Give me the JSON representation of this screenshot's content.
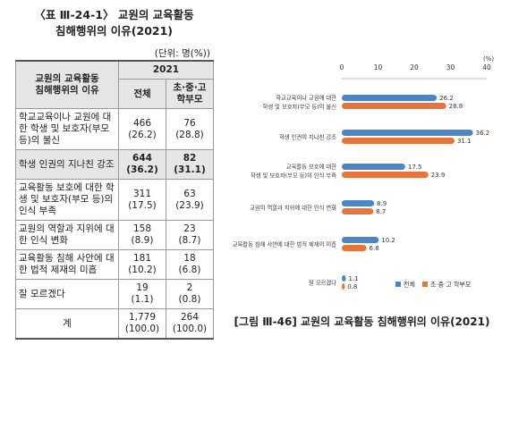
{
  "table": {
    "title_line1": "〈표 Ⅲ-24-1〉 교원의 교육활동",
    "title_line2": "침해행위의 이유(2021)",
    "unit": "(단위: 명(%))",
    "header": {
      "category": "교원의 교육활동\n침해행위의 이유",
      "year": "2021",
      "col_all": "전체",
      "col_parents": "초·중·고\n학부모"
    },
    "rows": [
      {
        "label": "학교교육이나 교원에 대한 학생 및 보호자(부모 등)의 불신",
        "all": "466\n(26.2)",
        "parents": "76\n(28.8)",
        "highlight": false
      },
      {
        "label": "학생 인권의 지나친 강조",
        "all": "644\n(36.2)",
        "parents": "82\n(31.1)",
        "highlight": true
      },
      {
        "label": "교육활동 보호에 대한 학생 및 보호자(부모 등)의 인식 부족",
        "all": "311\n(17.5)",
        "parents": "63\n(23.9)",
        "highlight": false
      },
      {
        "label": "교원의 역할과 지위에 대한 인식 변화",
        "all": "158\n(8.9)",
        "parents": "23\n(8.7)",
        "highlight": false
      },
      {
        "label": "교육활동 침해 사안에 대한 법적 제재의 미흡",
        "all": "181\n(10.2)",
        "parents": "18\n(6.8)",
        "highlight": false
      },
      {
        "label": "잘 모르겠다",
        "all": "19\n(1.1)",
        "parents": "2\n(0.8)",
        "highlight": false
      }
    ],
    "total": {
      "label": "계",
      "all": "1,779\n(100.0)",
      "parents": "264\n(100.0)"
    }
  },
  "chart_caption": "[그림 Ⅲ-46] 교원의 교육활동 침해행위의 이유(2021)",
  "chart_data": {
    "type": "bar",
    "orientation": "horizontal",
    "unit_label": "(%)",
    "xlim": [
      0,
      40
    ],
    "ticks": [
      "0",
      "10",
      "20",
      "30",
      "40"
    ],
    "categories": [
      "학교교육이나 교원에 대한\n학생 및 보호자(부모 등)의 불신",
      "학생 인권의 지나친 강조",
      "교육활동 보호에 대한\n학생 및 보호자(부모 등)의 인식 부족",
      "교원의 역할과 지위에 대한 인식 변화",
      "교육활동 침해 사안에 대한 법적 제재의 미흡",
      "잘 모르겠다"
    ],
    "series": [
      {
        "name": "전체",
        "color": "#4a86c5",
        "values": [
          26.2,
          36.2,
          17.5,
          8.9,
          10.2,
          1.1
        ]
      },
      {
        "name": "초·중·고 학부모",
        "color": "#e8743b",
        "values": [
          28.8,
          31.1,
          23.9,
          8.7,
          6.8,
          0.8
        ]
      }
    ],
    "value_labels": [
      [
        "26.2",
        "36.2",
        "17.5",
        "8.9",
        "10.2",
        "1.1"
      ],
      [
        "28.8",
        "31.1",
        "23.9",
        "8.7",
        "6.8",
        "0.8"
      ]
    ],
    "legend": "bottom-right",
    "grid": false
  }
}
